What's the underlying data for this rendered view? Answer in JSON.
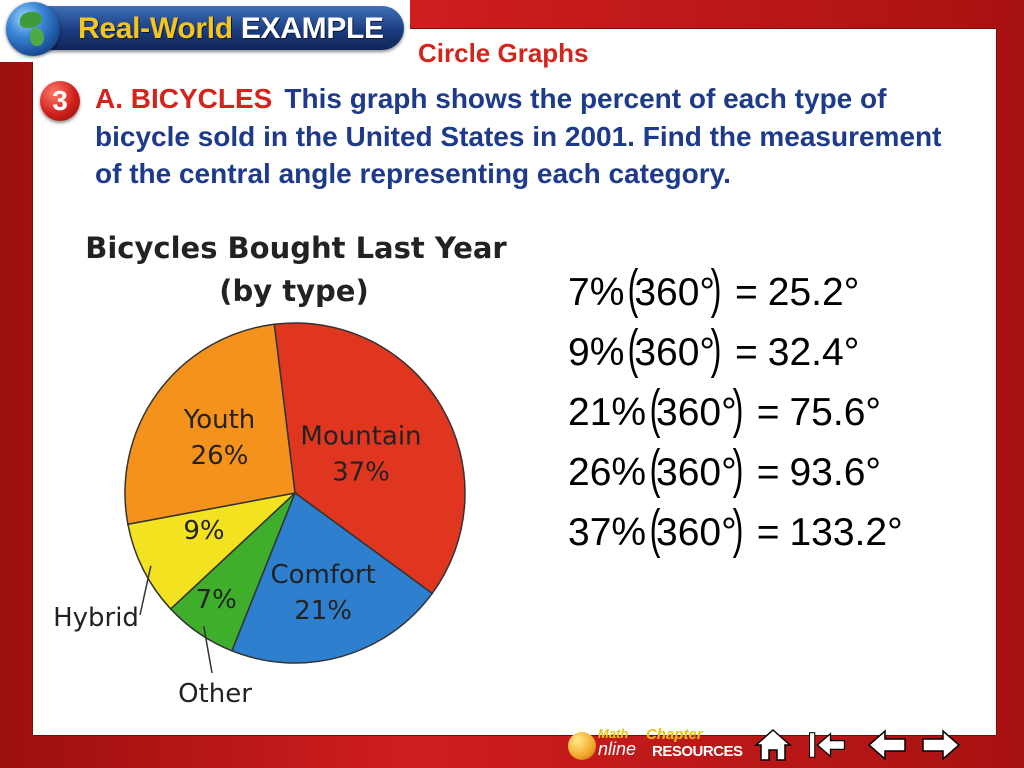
{
  "header": {
    "badge_part1": "Real-World",
    "badge_part2": "EXAMPLE",
    "slide_title": "Circle Graphs"
  },
  "problem": {
    "number": "3",
    "lead": "A. BICYCLES",
    "text": "This graph shows the percent of each type of bicycle sold in the United States in 2001. Find the measurement of the central angle representing each category."
  },
  "chart_data": {
    "type": "pie",
    "title": "Bicycles Bought Last Year",
    "subtitle": "(by type)",
    "slices": [
      {
        "label": "Mountain",
        "value": 37,
        "display": "37%",
        "color": "#e0361f"
      },
      {
        "label": "Comfort",
        "value": 21,
        "display": "21%",
        "color": "#2f7fcf"
      },
      {
        "label": "Other",
        "value": 7,
        "display": "7%",
        "color": "#3fae2a"
      },
      {
        "label": "Hybrid",
        "value": 9,
        "display": "9%",
        "color": "#f3e21f"
      },
      {
        "label": "Youth",
        "value": 26,
        "display": "26%",
        "color": "#f5921b"
      }
    ]
  },
  "equations": [
    {
      "percent": "7%",
      "angle": "360°",
      "result": "25.2°"
    },
    {
      "percent": "9%",
      "angle": "360°",
      "result": "32.4°"
    },
    {
      "percent": "21%",
      "angle": "360°",
      "result": "75.6°"
    },
    {
      "percent": "26%",
      "angle": "360°",
      "result": "93.6°"
    },
    {
      "percent": "37%",
      "angle": "360°",
      "result": "133.2°"
    }
  ],
  "nav": {
    "math_label1": "Math",
    "math_label2": "nline",
    "chapter_label1": "Chapter",
    "chapter_label2": "RESOURCES",
    "buttons": [
      "home-icon",
      "first-slide-icon",
      "previous-slide-icon",
      "next-slide-icon"
    ]
  }
}
